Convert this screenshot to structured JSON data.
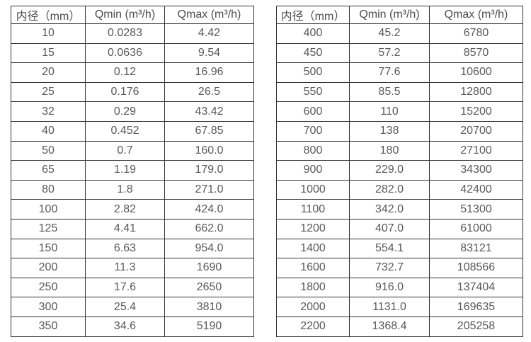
{
  "page": {
    "background_color": "#ffffff",
    "border_color": "#333333",
    "text_color": "#595959",
    "description": "Two side-by-side water meter flow rate specification tables"
  },
  "left_table": {
    "headers": [
      "内径（mm）",
      "Qmin (m³/h)",
      "Qmax (m³/h)"
    ],
    "rows": [
      [
        "10",
        "0.0283",
        "4.42"
      ],
      [
        "15",
        "0.0636",
        "9.54"
      ],
      [
        "20",
        "0.12",
        "16.96"
      ],
      [
        "25",
        "0.176",
        "26.5"
      ],
      [
        "32",
        "0.29",
        "43.42"
      ],
      [
        "40",
        "0.452",
        "67.85"
      ],
      [
        "50",
        "0.7",
        "160.0"
      ],
      [
        "65",
        "1.19",
        "179.0"
      ],
      [
        "80",
        "1.8",
        "271.0"
      ],
      [
        "100",
        "2.82",
        "424.0"
      ],
      [
        "125",
        "4.41",
        "662.0"
      ],
      [
        "150",
        "6.63",
        "954.0"
      ],
      [
        "200",
        "11.3",
        "1690"
      ],
      [
        "250",
        "17.6",
        "2650"
      ],
      [
        "300",
        "25.4",
        "3810"
      ],
      [
        "350",
        "34.6",
        "5190"
      ]
    ]
  },
  "right_table": {
    "headers": [
      "内径（mm）",
      "Qmin (m³/h)",
      "Qmax (m³/h)"
    ],
    "rows": [
      [
        "400",
        "45.2",
        "6780"
      ],
      [
        "450",
        "57.2",
        "8570"
      ],
      [
        "500",
        "77.6",
        "10600"
      ],
      [
        "550",
        "85.5",
        "12800"
      ],
      [
        "600",
        "110",
        "15200"
      ],
      [
        "700",
        "138",
        "20700"
      ],
      [
        "800",
        "180",
        "27100"
      ],
      [
        "900",
        "229.0",
        "34300"
      ],
      [
        "1000",
        "282.0",
        "42400"
      ],
      [
        "1100",
        "342.0",
        "51300"
      ],
      [
        "1200",
        "407.0",
        "61000"
      ],
      [
        "1400",
        "554.1",
        "83121"
      ],
      [
        "1600",
        "732.7",
        "108566"
      ],
      [
        "1800",
        "916.0",
        "137404"
      ],
      [
        "2000",
        "1131.0",
        "169635"
      ],
      [
        "2200",
        "1368.4",
        "205258"
      ]
    ]
  }
}
